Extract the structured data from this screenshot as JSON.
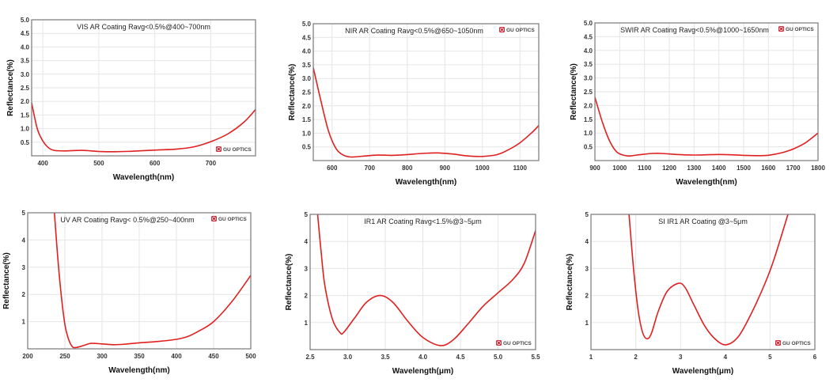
{
  "colors": {
    "curve": "#e02020",
    "grid": "#e6e6e6",
    "frame": "#777777",
    "logo": "#d0303a"
  },
  "chart_data": [
    {
      "type": "line",
      "title": "VIS AR Coating Ravg<0.5%@400~700nm",
      "xlabel": "Wavelength(nm)",
      "ylabel": "Reflectance(%)",
      "xlim": [
        380,
        780
      ],
      "ylim": [
        0,
        5
      ],
      "xticks": [
        "400",
        "500",
        "600",
        "700"
      ],
      "yticks": [
        "0.5",
        "1.0",
        "1.5",
        "2.0",
        "2.5",
        "3.0",
        "3.5",
        "4.0",
        "4.5",
        "5.0"
      ],
      "grid": true,
      "logo": "GU OPTICS",
      "logo_position": "bottom-right",
      "x": [
        380,
        390,
        400,
        410,
        420,
        440,
        470,
        500,
        530,
        560,
        600,
        640,
        670,
        700,
        730,
        760,
        780
      ],
      "y": [
        1.95,
        1.0,
        0.55,
        0.3,
        0.2,
        0.18,
        0.2,
        0.16,
        0.15,
        0.17,
        0.21,
        0.25,
        0.33,
        0.52,
        0.8,
        1.25,
        1.7
      ]
    },
    {
      "type": "line",
      "title": "NIR AR Coating Ravg<0.5%@650~1050nm",
      "xlabel": "Wavelength(nm)",
      "ylabel": "Reflectance(%)",
      "xlim": [
        550,
        1150
      ],
      "ylim": [
        0,
        5
      ],
      "xticks": [
        "600",
        "700",
        "800",
        "900",
        "1000",
        "1100"
      ],
      "yticks": [
        "0.5",
        "1.0",
        "1.5",
        "2.0",
        "2.5",
        "3.0",
        "3.5",
        "4.0",
        "4.5",
        "5.0"
      ],
      "grid": true,
      "logo": "GU OPTICS",
      "logo_position": "top-right",
      "x": [
        550,
        570,
        590,
        610,
        630,
        650,
        680,
        720,
        760,
        800,
        840,
        880,
        920,
        960,
        1000,
        1040,
        1070,
        1100,
        1130,
        1150
      ],
      "y": [
        3.4,
        2.2,
        1.1,
        0.45,
        0.2,
        0.13,
        0.16,
        0.2,
        0.19,
        0.22,
        0.26,
        0.28,
        0.24,
        0.17,
        0.15,
        0.22,
        0.4,
        0.65,
        1.0,
        1.28
      ]
    },
    {
      "type": "line",
      "title": "SWIR AR Coating Ravg<0.5%@1000~1650nm",
      "xlabel": "Wavelength(nm)",
      "ylabel": "Reflectance(%)",
      "xlim": [
        900,
        1800
      ],
      "ylim": [
        0,
        5
      ],
      "xticks": [
        "900",
        "1000",
        "1100",
        "1200",
        "1300",
        "1400",
        "1500",
        "1600",
        "1700",
        "1800"
      ],
      "yticks": [
        "0.5",
        "1.0",
        "1.5",
        "2.0",
        "2.5",
        "3.0",
        "3.5",
        "4.0",
        "4.5",
        "5.0"
      ],
      "grid": true,
      "logo": "GU OPTICS",
      "logo_position": "top-right",
      "x": [
        900,
        930,
        960,
        990,
        1030,
        1070,
        1130,
        1170,
        1230,
        1300,
        1400,
        1450,
        1500,
        1580,
        1620,
        1660,
        1700,
        1750,
        1800
      ],
      "y": [
        2.3,
        1.4,
        0.7,
        0.3,
        0.17,
        0.2,
        0.26,
        0.26,
        0.22,
        0.2,
        0.22,
        0.21,
        0.19,
        0.18,
        0.22,
        0.3,
        0.42,
        0.65,
        1.0
      ]
    },
    {
      "type": "line",
      "title": "UV AR Coating Ravg< 0.5%@250~400nm",
      "xlabel": "Wavelength(nm)",
      "ylabel": "Reflectance(%)",
      "xlim": [
        200,
        500
      ],
      "ylim": [
        0,
        5
      ],
      "xticks": [
        "200",
        "250",
        "300",
        "350",
        "400",
        "450",
        "500"
      ],
      "yticks": [
        "1",
        "2",
        "3",
        "4",
        "5"
      ],
      "grid": true,
      "logo": "GU OPTICS",
      "logo_position": "top-right",
      "x": [
        236,
        240,
        245,
        250,
        255,
        260,
        265,
        275,
        285,
        300,
        315,
        330,
        350,
        375,
        400,
        415,
        430,
        450,
        475,
        500
      ],
      "y": [
        5.0,
        3.5,
        2.0,
        0.9,
        0.35,
        0.08,
        0.05,
        0.12,
        0.2,
        0.18,
        0.15,
        0.17,
        0.22,
        0.27,
        0.35,
        0.45,
        0.65,
        1.0,
        1.75,
        2.7
      ]
    },
    {
      "type": "line",
      "title": "IR1 AR Coating Ravg<1.5%@3~5μm",
      "xlabel": "Wavelength(μm)",
      "ylabel": "Reflectance(%)",
      "xlim": [
        2.5,
        5.5
      ],
      "ylim": [
        0,
        5
      ],
      "xticks": [
        "2.5",
        "3.0",
        "3.5",
        "4.0",
        "4.5",
        "5.0",
        "5.5"
      ],
      "yticks": [
        "1",
        "2",
        "3",
        "4",
        "5"
      ],
      "grid": true,
      "logo": "GU OPTICS",
      "logo_position": "bottom-right",
      "x": [
        2.6,
        2.65,
        2.7,
        2.8,
        2.9,
        2.95,
        3.1,
        3.25,
        3.43,
        3.6,
        3.8,
        4.0,
        4.23,
        4.4,
        4.6,
        4.8,
        5.0,
        5.2,
        5.35,
        5.5
      ],
      "y": [
        5.0,
        3.5,
        2.3,
        1.1,
        0.62,
        0.65,
        1.2,
        1.75,
        2.0,
        1.75,
        1.05,
        0.45,
        0.15,
        0.35,
        0.95,
        1.6,
        2.1,
        2.6,
        3.2,
        4.4
      ]
    },
    {
      "type": "line",
      "title": "SI IR1 AR Coating @3~5μm",
      "xlabel": "Wavelength(μm)",
      "ylabel": "Reflectance(%)",
      "xlim": [
        1,
        6
      ],
      "ylim": [
        0,
        5
      ],
      "xticks": [
        "1",
        "2",
        "3",
        "4",
        "5",
        "6"
      ],
      "yticks": [
        "1",
        "2",
        "3",
        "4",
        "5"
      ],
      "grid": true,
      "logo": "GU OPTICS",
      "logo_position": "bottom-right",
      "x": [
        1.85,
        1.95,
        2.05,
        2.15,
        2.25,
        2.35,
        2.5,
        2.7,
        2.95,
        3.1,
        3.3,
        3.55,
        3.8,
        4.03,
        4.3,
        4.6,
        4.9,
        5.1,
        5.4
      ],
      "y": [
        5.0,
        3.0,
        1.5,
        0.65,
        0.4,
        0.6,
        1.4,
        2.15,
        2.45,
        2.3,
        1.65,
        0.85,
        0.35,
        0.18,
        0.5,
        1.4,
        2.5,
        3.4,
        5.0
      ]
    }
  ]
}
